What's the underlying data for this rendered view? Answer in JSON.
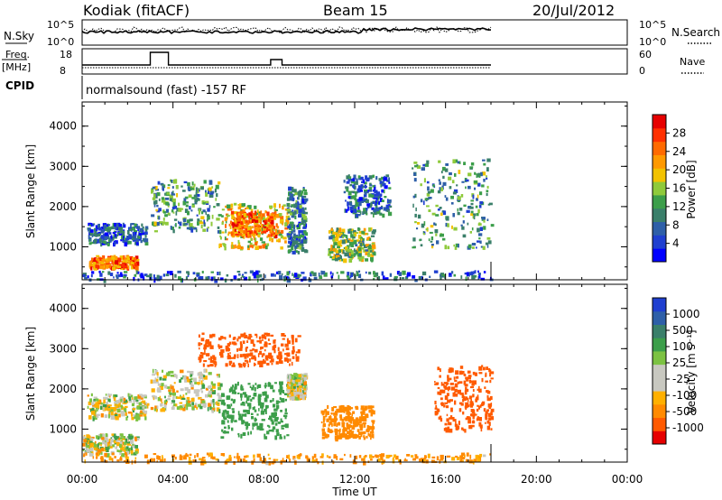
{
  "header": {
    "radar": "Kodiak (fitACF)",
    "beam": "Beam 15",
    "date": "20/Jul/2012",
    "cpid_label": "CPID",
    "cpid_text": "normalsound (fast) -157 RF"
  },
  "panels": {
    "nsky_label": "N.Sky",
    "nsearch_label": "N.Search",
    "noise_ticks": [
      "10^5",
      "10^0"
    ],
    "freq_label": "Freq.",
    "freq_unit": "[MHz]",
    "freq_ticks": [
      "18",
      "8"
    ],
    "nave_label": "Nave",
    "nave_ticks": [
      "60",
      "0"
    ]
  },
  "colors": {
    "power_scale": [
      "#0000ff",
      "#1f3fd0",
      "#2e5fa8",
      "#3a7f6a",
      "#3c9e4a",
      "#8fca3b",
      "#f2c200",
      "#ff9900",
      "#ff6a00",
      "#ff3000",
      "#e60000"
    ],
    "velocity_scale": [
      "#1f3fd0",
      "#2e5fa8",
      "#3a7f6a",
      "#3c9e4a",
      "#7cc242",
      "#c8c8c0",
      "#c8c8c0",
      "#ffb000",
      "#ff8a00",
      "#ff5a00",
      "#e60000"
    ]
  },
  "chart_data": [
    {
      "type": "heatmap",
      "name": "power",
      "xlabel": "Time UT",
      "ylabel": "Slant Range [km]",
      "colorbar_label": "Power [dB]",
      "colorbar_ticks": [
        "28",
        "24",
        "20",
        "16",
        "12",
        "8",
        "4"
      ],
      "x_ticks": [
        "00:00",
        "04:00",
        "08:00",
        "12:00",
        "16:00",
        "20:00",
        "00:00"
      ],
      "y_ticks": [
        "4000",
        "3000",
        "2000",
        "1000"
      ],
      "xlim_hours": [
        0,
        24
      ],
      "ylim_km": [
        180,
        4600
      ],
      "data_end_hour": 18,
      "regions": [
        {
          "t": [
            0.3,
            2.4
          ],
          "r": [
            500,
            800
          ],
          "p": 24
        },
        {
          "t": [
            0.2,
            2.8
          ],
          "r": [
            1100,
            1600
          ],
          "p": 6
        },
        {
          "t": [
            3.0,
            6.0
          ],
          "r": [
            1400,
            2700
          ],
          "p": 10
        },
        {
          "t": [
            6.0,
            9.0
          ],
          "r": [
            1000,
            2100
          ],
          "p": 18
        },
        {
          "t": [
            6.5,
            8.5
          ],
          "r": [
            1300,
            1900
          ],
          "p": 24
        },
        {
          "t": [
            9.0,
            9.8
          ],
          "r": [
            900,
            2500
          ],
          "p": 8
        },
        {
          "t": [
            10.8,
            12.8
          ],
          "r": [
            700,
            1500
          ],
          "p": 14
        },
        {
          "t": [
            11.5,
            13.5
          ],
          "r": [
            1800,
            2800
          ],
          "p": 6
        },
        {
          "t": [
            14.5,
            18.0
          ],
          "r": [
            1000,
            3200
          ],
          "p": 10
        },
        {
          "t": [
            0.0,
            18.0
          ],
          "r": [
            200,
            420
          ],
          "p": 6
        }
      ]
    },
    {
      "type": "heatmap",
      "name": "velocity",
      "xlabel": "Time UT",
      "ylabel": "Slant Range [km]",
      "colorbar_label": "Velocity [m s⁻¹]",
      "colorbar_ticks": [
        "1000",
        "500",
        "100",
        "25",
        "-25",
        "-100",
        "-500",
        "-1000"
      ],
      "x_ticks": [
        "00:00",
        "04:00",
        "08:00",
        "12:00",
        "16:00",
        "20:00",
        "00:00"
      ],
      "y_ticks": [
        "4000",
        "3000",
        "2000",
        "1000"
      ],
      "xlim_hours": [
        0,
        24
      ],
      "ylim_km": [
        180,
        4600
      ],
      "data_end_hour": 18,
      "regions": [
        {
          "t": [
            0.0,
            2.4
          ],
          "r": [
            400,
            900
          ],
          "v": 0
        },
        {
          "t": [
            0.2,
            2.8
          ],
          "r": [
            1300,
            1900
          ],
          "v": 0
        },
        {
          "t": [
            3.0,
            6.0
          ],
          "r": [
            1500,
            2500
          ],
          "v": 0
        },
        {
          "t": [
            6.0,
            9.0
          ],
          "r": [
            800,
            2200
          ],
          "v": 150
        },
        {
          "t": [
            9.0,
            9.8
          ],
          "r": [
            1800,
            2400
          ],
          "v": 0
        },
        {
          "t": [
            10.5,
            12.8
          ],
          "r": [
            800,
            1600
          ],
          "v": -150
        },
        {
          "t": [
            15.5,
            18.0
          ],
          "r": [
            1000,
            2600
          ],
          "v": -500
        },
        {
          "t": [
            5.0,
            9.5
          ],
          "r": [
            2600,
            3400
          ],
          "v": -600
        },
        {
          "t": [
            0.0,
            18.0
          ],
          "r": [
            200,
            420
          ],
          "v": -100
        }
      ]
    }
  ]
}
